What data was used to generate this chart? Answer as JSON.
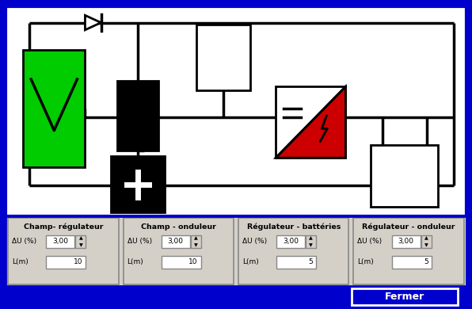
{
  "bg_color": "#0000CC",
  "diagram_bg": "#FFFFFF",
  "bottom_panel_bg": "#D4D0C8",
  "panel_sections": [
    {
      "title": "Champ- régulateur",
      "du_val": "3,00",
      "l_val": "10"
    },
    {
      "title": "Champ - onduleur",
      "du_val": "3,00",
      "l_val": "10"
    },
    {
      "title": "Régulateur - battéries",
      "du_val": "3,00",
      "l_val": "5"
    },
    {
      "title": "Régulateur - onduleur",
      "du_val": "3,00",
      "l_val": "5"
    }
  ],
  "fermer_text": "Fermer",
  "line_color": "#000000",
  "green_color": "#00CC00",
  "red_color": "#CC0000",
  "black_color": "#000000",
  "white_color": "#FFFFFF"
}
